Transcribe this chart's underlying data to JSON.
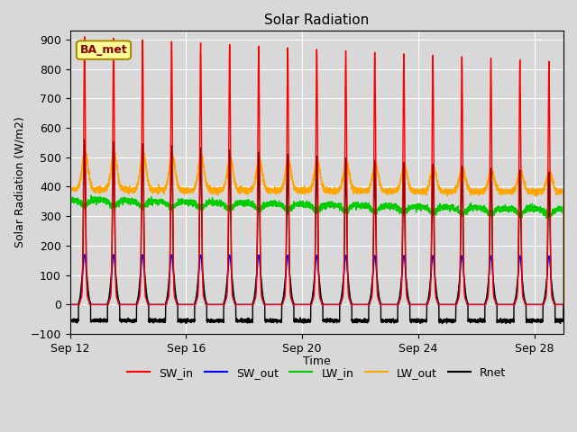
{
  "title": "Solar Radiation",
  "ylabel": "Solar Radiation (W/m2)",
  "xlabel": "Time",
  "ylim": [
    -100,
    930
  ],
  "yticks": [
    -100,
    0,
    100,
    200,
    300,
    400,
    500,
    600,
    700,
    800,
    900
  ],
  "xtick_labels": [
    "Sep 12",
    "Sep 16",
    "Sep 20",
    "Sep 24",
    "Sep 28"
  ],
  "xtick_positions": [
    0,
    4,
    8,
    12,
    16
  ],
  "background_color": "#d8d8d8",
  "plot_bg_color": "#d8d8d8",
  "line_colors": {
    "SW_in": "#ff0000",
    "SW_out": "#0000ff",
    "LW_in": "#00cc00",
    "LW_out": "#ffa500",
    "Rnet": "#000000"
  },
  "legend_label": "BA_met",
  "legend_box_color": "#ffff99",
  "legend_box_edge": "#aa8800",
  "n_days": 17,
  "title_fontsize": 11,
  "label_fontsize": 9,
  "tick_fontsize": 9,
  "legend_fontsize": 9,
  "grid_color": "#ffffff",
  "line_width": 1.0
}
